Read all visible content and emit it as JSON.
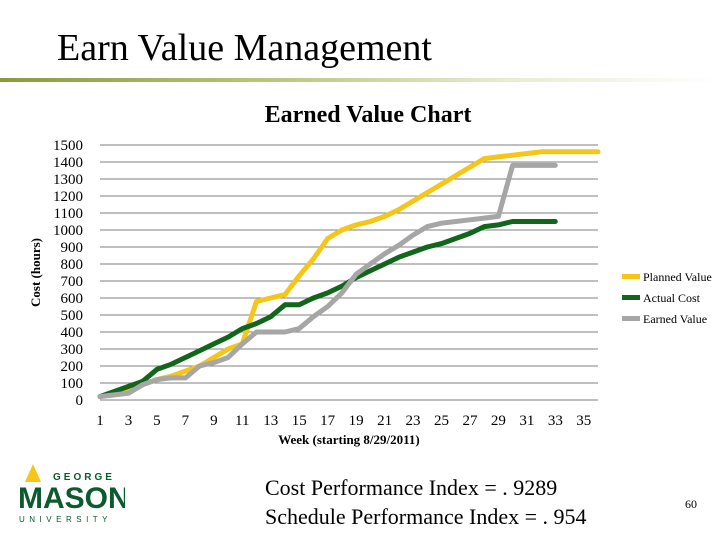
{
  "slide": {
    "title": "Earn Value Management",
    "cpi_text": "Cost Performance Index = . 9289",
    "spi_text": "Schedule Performance Index = . 954",
    "page_number": "60",
    "logo_top": "GEORGE",
    "logo_main": "MASON",
    "logo_bottom": "UNIVERSITY",
    "accent_color": "#8a9a3a",
    "logo_color": "#0b5b2e"
  },
  "chart_data": {
    "type": "line",
    "title": "Earned Value Chart",
    "xlabel": "Week (starting 8/29/2011)",
    "ylabel": "Cost (hours)",
    "ylim": [
      0,
      1500
    ],
    "xlim": [
      1,
      36
    ],
    "grid": true,
    "legend_position": "right",
    "y_ticks": [
      0,
      100,
      200,
      300,
      400,
      500,
      600,
      700,
      800,
      900,
      1000,
      1100,
      1200,
      1300,
      1400,
      1500
    ],
    "x_ticks": [
      1,
      3,
      5,
      7,
      9,
      11,
      13,
      15,
      17,
      19,
      21,
      23,
      25,
      27,
      29,
      31,
      33,
      35
    ],
    "series": [
      {
        "name": "Planned Value",
        "color": "#f5c518",
        "x": [
          1,
          2,
          3,
          4,
          5,
          6,
          7,
          8,
          9,
          10,
          11,
          12,
          13,
          14,
          15,
          16,
          17,
          18,
          19,
          20,
          21,
          22,
          23,
          24,
          25,
          26,
          27,
          28,
          29,
          30,
          31,
          32,
          33,
          34,
          35,
          36
        ],
        "values": [
          20,
          40,
          60,
          90,
          120,
          140,
          170,
          200,
          250,
          300,
          330,
          580,
          600,
          620,
          730,
          830,
          950,
          1000,
          1030,
          1050,
          1080,
          1120,
          1170,
          1220,
          1270,
          1320,
          1370,
          1420,
          1430,
          1440,
          1450,
          1460,
          1460,
          1460,
          1460,
          1460
        ]
      },
      {
        "name": "Actual Cost",
        "color": "#11661c",
        "x": [
          1,
          2,
          3,
          4,
          5,
          6,
          7,
          8,
          9,
          10,
          11,
          12,
          13,
          14,
          15,
          16,
          17,
          18,
          19,
          20,
          21,
          22,
          23,
          24,
          25,
          26,
          27,
          28,
          29,
          30,
          31,
          32,
          33
        ],
        "values": [
          20,
          50,
          80,
          110,
          180,
          210,
          250,
          290,
          330,
          370,
          420,
          450,
          490,
          560,
          560,
          600,
          630,
          670,
          720,
          760,
          800,
          840,
          870,
          900,
          920,
          950,
          980,
          1020,
          1030,
          1050,
          1050,
          1050,
          1050
        ]
      },
      {
        "name": "Earned Value",
        "color": "#a6a6a6",
        "x": [
          1,
          2,
          3,
          4,
          5,
          6,
          7,
          8,
          9,
          10,
          11,
          12,
          13,
          14,
          15,
          16,
          17,
          18,
          19,
          20,
          21,
          22,
          23,
          24,
          25,
          26,
          27,
          28,
          29,
          30,
          31,
          32,
          33
        ],
        "values": [
          20,
          30,
          40,
          90,
          120,
          130,
          130,
          200,
          220,
          250,
          330,
          400,
          400,
          400,
          420,
          490,
          550,
          630,
          740,
          800,
          860,
          910,
          970,
          1020,
          1040,
          1050,
          1060,
          1070,
          1080,
          1380,
          1380,
          1380,
          1380
        ]
      }
    ]
  }
}
